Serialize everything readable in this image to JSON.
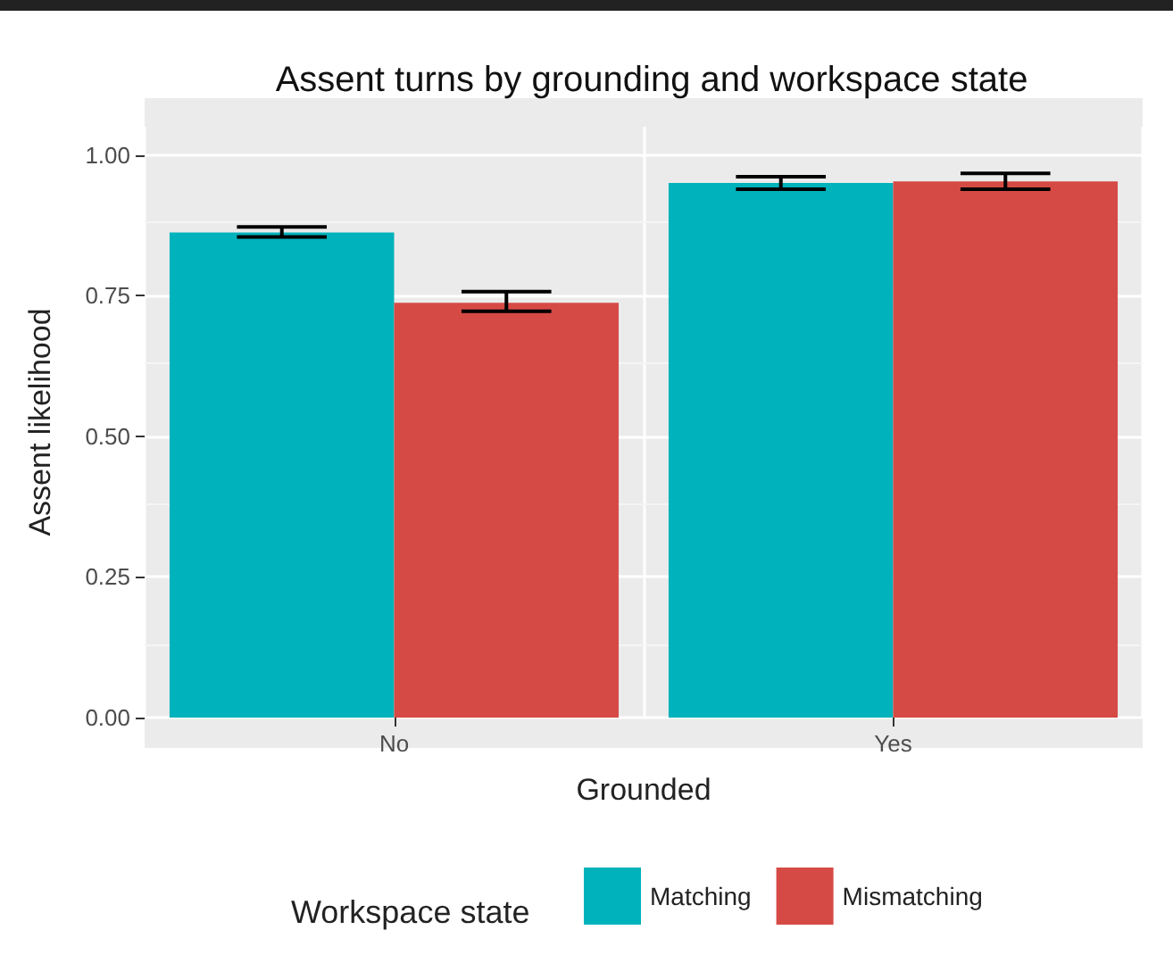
{
  "chart_data": {
    "type": "bar",
    "title": "Assent turns by grounding and workspace state",
    "xlabel": "Grounded",
    "ylabel": "Assent likelihood",
    "legend_title": "Workspace state",
    "categories": [
      "No",
      "Yes"
    ],
    "series": [
      {
        "name": "Matching",
        "color": "#00b2bb",
        "values": [
          0.862,
          0.95
        ],
        "errors": [
          [
            0.854,
            0.872
          ],
          [
            0.939,
            0.961
          ]
        ]
      },
      {
        "name": "Mismatching",
        "color": "#d64a45",
        "values": [
          0.737,
          0.953
        ],
        "errors": [
          [
            0.722,
            0.757
          ],
          [
            0.939,
            0.967
          ]
        ]
      }
    ],
    "ylim": [
      0,
      1.05
    ],
    "yticks": [
      {
        "value": 0,
        "label": "0.00"
      },
      {
        "value": 0.25,
        "label": "0.25"
      },
      {
        "value": 0.5,
        "label": "0.50"
      },
      {
        "value": 0.75,
        "label": "0.75"
      },
      {
        "value": 1,
        "label": "1.00"
      }
    ],
    "grid": true,
    "legend": "bottom"
  }
}
